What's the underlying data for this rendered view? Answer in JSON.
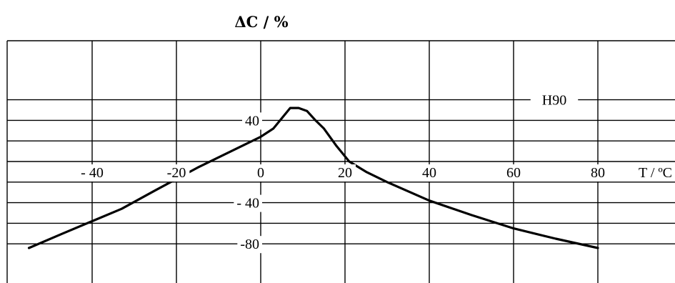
{
  "chart_data": {
    "type": "line",
    "title": "ΔC / %",
    "xlabel": "T / ºC",
    "ylabel": "",
    "xlim": [
      -50,
      85
    ],
    "ylim": [
      -84,
      75
    ],
    "x_ticks": [
      -40,
      -20,
      0,
      20,
      40,
      60,
      80
    ],
    "x_tick_labels": [
      "- 40",
      "-20",
      "0",
      "20",
      "40",
      "60",
      "80"
    ],
    "y_ticks": [
      40,
      -40,
      -80
    ],
    "y_tick_labels": [
      "40",
      "- 40",
      "-80"
    ],
    "grid": true,
    "legend": "top-right",
    "series": [
      {
        "name": "H90",
        "x": [
          -55,
          -47,
          -40,
          -33,
          -25,
          -15,
          -5,
          0,
          3,
          5,
          7,
          9,
          11,
          13,
          15,
          18,
          21,
          25,
          30,
          40,
          50,
          60,
          70,
          80
        ],
        "y": [
          -84,
          -70,
          -58,
          -46,
          -28,
          -6,
          14,
          24,
          32,
          42,
          52,
          52,
          49,
          40,
          32,
          15,
          0,
          -10,
          -20,
          -38,
          -52,
          -65,
          -75,
          -84
        ]
      }
    ]
  }
}
